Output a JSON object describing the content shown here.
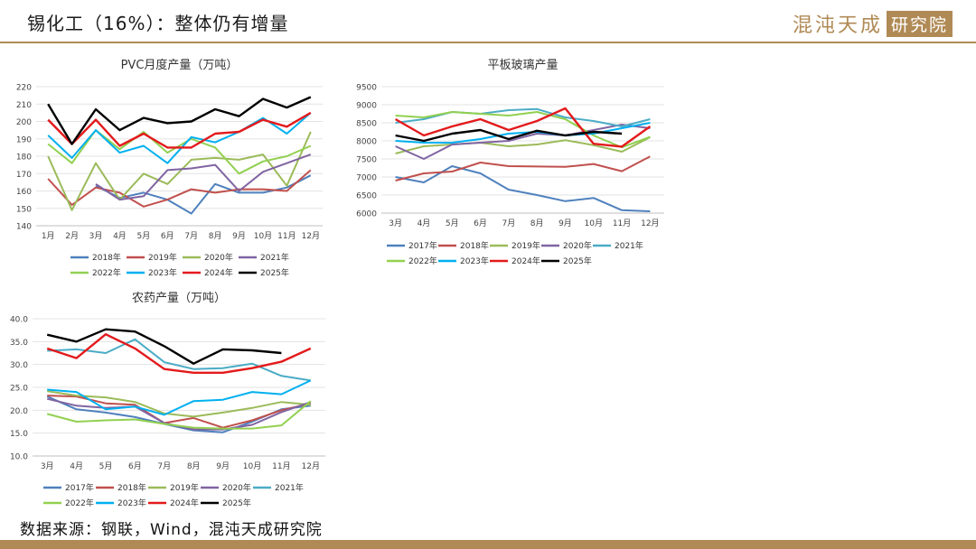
{
  "header": {
    "title": "锡化工（16%）：整体仍有增量",
    "brand_main": "混沌天成",
    "brand_box": "研究院"
  },
  "footer": {
    "source": "数据来源：钢联，Wind，混沌天成研究院"
  },
  "colors": [
    "#4f81bd",
    "#c0504d",
    "#9bbb59",
    "#8064a2",
    "#4bacc6",
    "#92d050",
    "#00b0f0",
    "#e31a1c",
    "#000000"
  ],
  "chart_data": [
    {
      "type": "line",
      "title": "PVC月度产量（万吨）",
      "categories": [
        "1月",
        "2月",
        "3月",
        "4月",
        "5月",
        "6月",
        "7月",
        "8月",
        "9月",
        "10月",
        "11月",
        "12月"
      ],
      "ylim": [
        140,
        220
      ],
      "yticks": [
        "140",
        "150",
        "160",
        "170",
        "180",
        "190",
        "200",
        "210",
        "220"
      ],
      "series": [
        {
          "name": "2018年",
          "color": "#4f81bd",
          "values": [
            null,
            null,
            163,
            156,
            159,
            155,
            147,
            164,
            159,
            159,
            162,
            169
          ]
        },
        {
          "name": "2019年",
          "color": "#c0504d",
          "values": [
            167,
            152,
            162,
            159,
            151,
            155,
            161,
            159,
            161,
            161,
            160,
            172
          ]
        },
        {
          "name": "2020年",
          "color": "#9bbb59",
          "values": [
            180,
            149,
            176,
            155,
            170,
            164,
            178,
            179,
            178,
            181,
            163,
            194
          ]
        },
        {
          "name": "2021年",
          "color": "#8064a2",
          "values": [
            null,
            null,
            164,
            155,
            157,
            172,
            173,
            175,
            160,
            171,
            176,
            181
          ]
        },
        {
          "name": "2022年",
          "color": "#92d050",
          "values": [
            187,
            176,
            195,
            184,
            194,
            182,
            190,
            185,
            170,
            177,
            180,
            186
          ]
        },
        {
          "name": "2023年",
          "color": "#00b0f0",
          "values": [
            192,
            179,
            195,
            182,
            186,
            176,
            191,
            188,
            194,
            202,
            193,
            205
          ]
        },
        {
          "name": "2024年",
          "color": "#e31a1c",
          "values": [
            201,
            187,
            201,
            186,
            193,
            185,
            185,
            193,
            194,
            201,
            197,
            205
          ]
        },
        {
          "name": "2025年",
          "color": "#000000",
          "values": [
            210,
            187,
            207,
            195,
            202,
            199,
            200,
            207,
            203,
            213,
            208,
            214
          ]
        }
      ]
    },
    {
      "type": "line",
      "title": "平板玻璃产量",
      "categories": [
        "3月",
        "4月",
        "5月",
        "6月",
        "7月",
        "8月",
        "9月",
        "10月",
        "11月",
        "12月"
      ],
      "ylim": [
        6000,
        9500
      ],
      "yticks": [
        "6000",
        "6500",
        "7000",
        "7500",
        "8000",
        "8500",
        "9000",
        "9500"
      ],
      "series": [
        {
          "name": "2017年",
          "color": "#4f81bd",
          "values": [
            7000,
            6850,
            7300,
            7100,
            6650,
            6500,
            6330,
            6420,
            6080,
            6050
          ]
        },
        {
          "name": "2018年",
          "color": "#c0504d",
          "values": [
            6900,
            7100,
            7150,
            7400,
            7300,
            7290,
            7280,
            7360,
            7160,
            7570
          ]
        },
        {
          "name": "2019年",
          "color": "#9bbb59",
          "values": [
            7650,
            7850,
            7900,
            7950,
            7850,
            7900,
            8020,
            7880,
            7700,
            8100
          ]
        },
        {
          "name": "2020年",
          "color": "#8064a2",
          "values": [
            7850,
            7500,
            7900,
            7950,
            8000,
            8200,
            8150,
            8300,
            8450,
            8350
          ]
        },
        {
          "name": "2021年",
          "color": "#4bacc6",
          "values": [
            8500,
            8600,
            8800,
            8750,
            8850,
            8880,
            8650,
            8550,
            8400,
            8600
          ]
        },
        {
          "name": "2022年",
          "color": "#92d050",
          "values": [
            8700,
            8650,
            8800,
            8750,
            8700,
            8800,
            8600,
            8150,
            7820,
            8110
          ]
        },
        {
          "name": "2023年",
          "color": "#00b0f0",
          "values": [
            8000,
            7950,
            7950,
            8050,
            8200,
            8250,
            8150,
            8200,
            8350,
            8500
          ]
        },
        {
          "name": "2024年",
          "color": "#e31a1c",
          "values": [
            8600,
            8150,
            8400,
            8600,
            8300,
            8550,
            8900,
            7920,
            7840,
            8400
          ]
        },
        {
          "name": "2025年",
          "color": "#000000",
          "values": [
            8150,
            8000,
            8200,
            8300,
            8050,
            8280,
            8150,
            8250,
            8200,
            null
          ]
        }
      ]
    },
    {
      "type": "line",
      "title": "农药产量（万吨）",
      "categories": [
        "3月",
        "4月",
        "5月",
        "6月",
        "7月",
        "8月",
        "9月",
        "10月",
        "11月",
        "12月"
      ],
      "ylim": [
        10,
        40
      ],
      "yticks": [
        "10.0",
        "15.0",
        "20.0",
        "25.0",
        "30.0",
        "35.0",
        "40.0"
      ],
      "series": [
        {
          "name": "2017年",
          "color": "#4f81bd",
          "values": [
            23.0,
            20.2,
            19.5,
            18.5,
            17.0,
            15.6,
            15.2,
            17.5,
            20.2,
            21.0
          ]
        },
        {
          "name": "2018年",
          "color": "#c0504d",
          "values": [
            23.2,
            23.0,
            21.5,
            21.2,
            17.2,
            18.3,
            16.2,
            17.8,
            20.0,
            21.5
          ]
        },
        {
          "name": "2019年",
          "color": "#9bbb59",
          "values": [
            24.2,
            23.2,
            22.8,
            21.8,
            19.3,
            18.6,
            19.5,
            20.5,
            21.8,
            21.2
          ]
        },
        {
          "name": "2020年",
          "color": "#8064a2",
          "values": [
            22.5,
            21.0,
            20.5,
            20.8,
            17.2,
            15.8,
            15.8,
            16.8,
            19.6,
            21.8
          ]
        },
        {
          "name": "2021年",
          "color": "#4bacc6",
          "values": [
            33.0,
            33.3,
            32.5,
            35.5,
            30.5,
            29.0,
            29.2,
            30.2,
            27.5,
            26.5
          ]
        },
        {
          "name": "2022年",
          "color": "#92d050",
          "values": [
            19.2,
            17.5,
            17.8,
            18.0,
            17.0,
            16.2,
            16.0,
            16.0,
            16.7,
            22.0
          ]
        },
        {
          "name": "2023年",
          "color": "#00b0f0",
          "values": [
            24.5,
            24.0,
            20.2,
            20.8,
            19.0,
            22.0,
            22.3,
            24.0,
            23.5,
            26.5
          ]
        },
        {
          "name": "2024年",
          "color": "#e31a1c",
          "values": [
            33.5,
            31.4,
            36.6,
            33.5,
            29.0,
            28.2,
            28.2,
            29.2,
            30.6,
            33.5
          ]
        },
        {
          "name": "2025年",
          "color": "#000000",
          "values": [
            36.5,
            35.0,
            37.7,
            37.2,
            34.0,
            30.2,
            33.3,
            33.1,
            32.5,
            null
          ]
        }
      ]
    }
  ]
}
